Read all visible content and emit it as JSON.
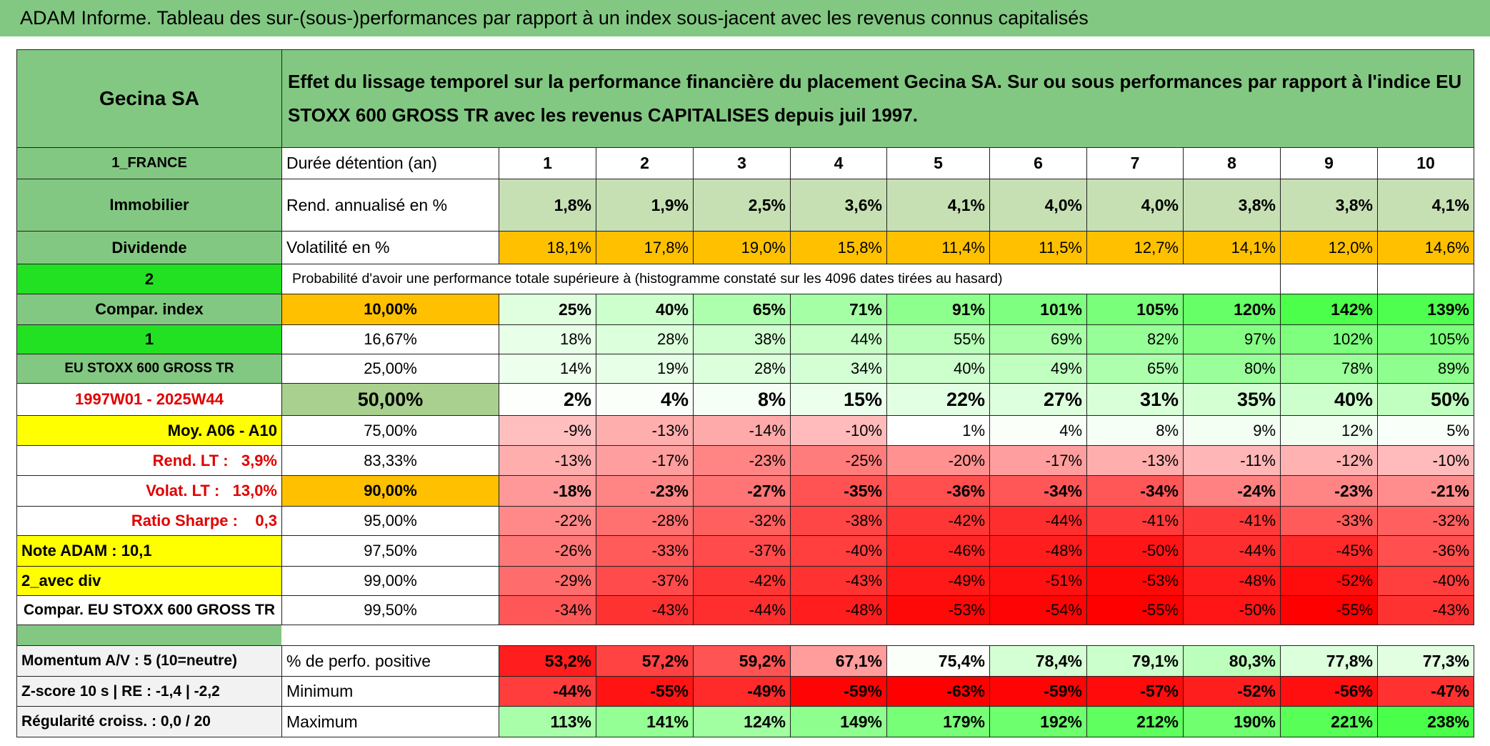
{
  "title": "ADAM Informe. Tableau des sur-(sous-)performances par rapport à un index sous-jacent avec les revenus connus capitalisés",
  "table": {
    "header": {
      "name": "Gecina SA",
      "description": "Effet du lissage temporel sur la performance financière du placement Gecina SA. Sur ou sous performances par rapport à l'indice EU STOXX 600 GROSS TR avec les revenus CAPITALISES depuis juil 1997."
    },
    "rows": [
      [
        "1_FRANCE",
        "Durée détention (an)",
        "1",
        "2",
        "3",
        "4",
        "5",
        "6",
        "7",
        "8",
        "9",
        "10"
      ],
      [
        "Immobilier",
        "Rend. annualisé en %",
        "1,8%",
        "1,9%",
        "2,5%",
        "3,6%",
        "4,1%",
        "4,0%",
        "4,0%",
        "3,8%",
        "3,8%",
        "4,1%"
      ],
      [
        "Dividende",
        "Volatilité en %",
        "18,1%",
        "17,8%",
        "19,0%",
        "15,8%",
        "11,4%",
        "11,5%",
        "12,7%",
        "14,1%",
        "12,0%",
        "14,6%"
      ],
      [
        "2",
        "Probabilité d'avoir une performance totale supérieure à (histogramme constaté sur les 4096 dates tirées au hasard)"
      ],
      [
        "Compar. index",
        "10,00%",
        "25%",
        "40%",
        "65%",
        "71%",
        "91%",
        "101%",
        "105%",
        "120%",
        "142%",
        "139%"
      ],
      [
        "1",
        "16,67%",
        "18%",
        "28%",
        "38%",
        "44%",
        "55%",
        "69%",
        "82%",
        "97%",
        "102%",
        "105%"
      ],
      [
        "EU STOXX 600 GROSS TR",
        "25,00%",
        "14%",
        "19%",
        "28%",
        "34%",
        "40%",
        "49%",
        "65%",
        "80%",
        "78%",
        "89%"
      ],
      [
        "1997W01 - 2025W44",
        "50,00%",
        "2%",
        "4%",
        "8%",
        "15%",
        "22%",
        "27%",
        "31%",
        "35%",
        "40%",
        "50%"
      ],
      [
        "Moy. A06 - A10",
        "75,00%",
        "-9%",
        "-13%",
        "-14%",
        "-10%",
        "1%",
        "4%",
        "8%",
        "9%",
        "12%",
        "5%"
      ],
      [
        "Rend. LT :   3,9%",
        "83,33%",
        "-13%",
        "-17%",
        "-23%",
        "-25%",
        "-20%",
        "-17%",
        "-13%",
        "-11%",
        "-12%",
        "-10%"
      ],
      [
        "Volat. LT :   13,0%",
        "90,00%",
        "-18%",
        "-23%",
        "-27%",
        "-35%",
        "-36%",
        "-34%",
        "-34%",
        "-24%",
        "-23%",
        "-21%"
      ],
      [
        "Ratio Sharpe :    0,3",
        "95,00%",
        "-22%",
        "-28%",
        "-32%",
        "-38%",
        "-42%",
        "-44%",
        "-41%",
        "-41%",
        "-33%",
        "-32%"
      ],
      [
        "Note ADAM : 10,1",
        "97,50%",
        "-26%",
        "-33%",
        "-37%",
        "-40%",
        "-46%",
        "-48%",
        "-50%",
        "-44%",
        "-45%",
        "-36%"
      ],
      [
        "2_avec div",
        "99,00%",
        "-29%",
        "-37%",
        "-42%",
        "-43%",
        "-49%",
        "-51%",
        "-53%",
        "-48%",
        "-52%",
        "-40%"
      ],
      [
        "Compar. EU STOXX 600 GROSS TR",
        "99,50%",
        "-34%",
        "-43%",
        "-44%",
        "-48%",
        "-53%",
        "-54%",
        "-55%",
        "-50%",
        "-55%",
        "-43%"
      ],
      [
        "Momentum A/V : 5 (10=neutre)",
        "% de perfo. positive",
        "53,2%",
        "57,2%",
        "59,2%",
        "67,1%",
        "75,4%",
        "78,4%",
        "79,1%",
        "80,3%",
        "77,8%",
        "77,3%"
      ],
      [
        "Z-score 10 s | RE : -1,4 | -2,2",
        "Minimum",
        "-44%",
        "-55%",
        "-49%",
        "-59%",
        "-63%",
        "-59%",
        "-57%",
        "-52%",
        "-56%",
        "-47%"
      ],
      [
        "Régularité croiss. : 0,0 / 20",
        "Maximum",
        "113%",
        "141%",
        "124%",
        "149%",
        "179%",
        "192%",
        "212%",
        "190%",
        "221%",
        "238%"
      ]
    ]
  }
}
